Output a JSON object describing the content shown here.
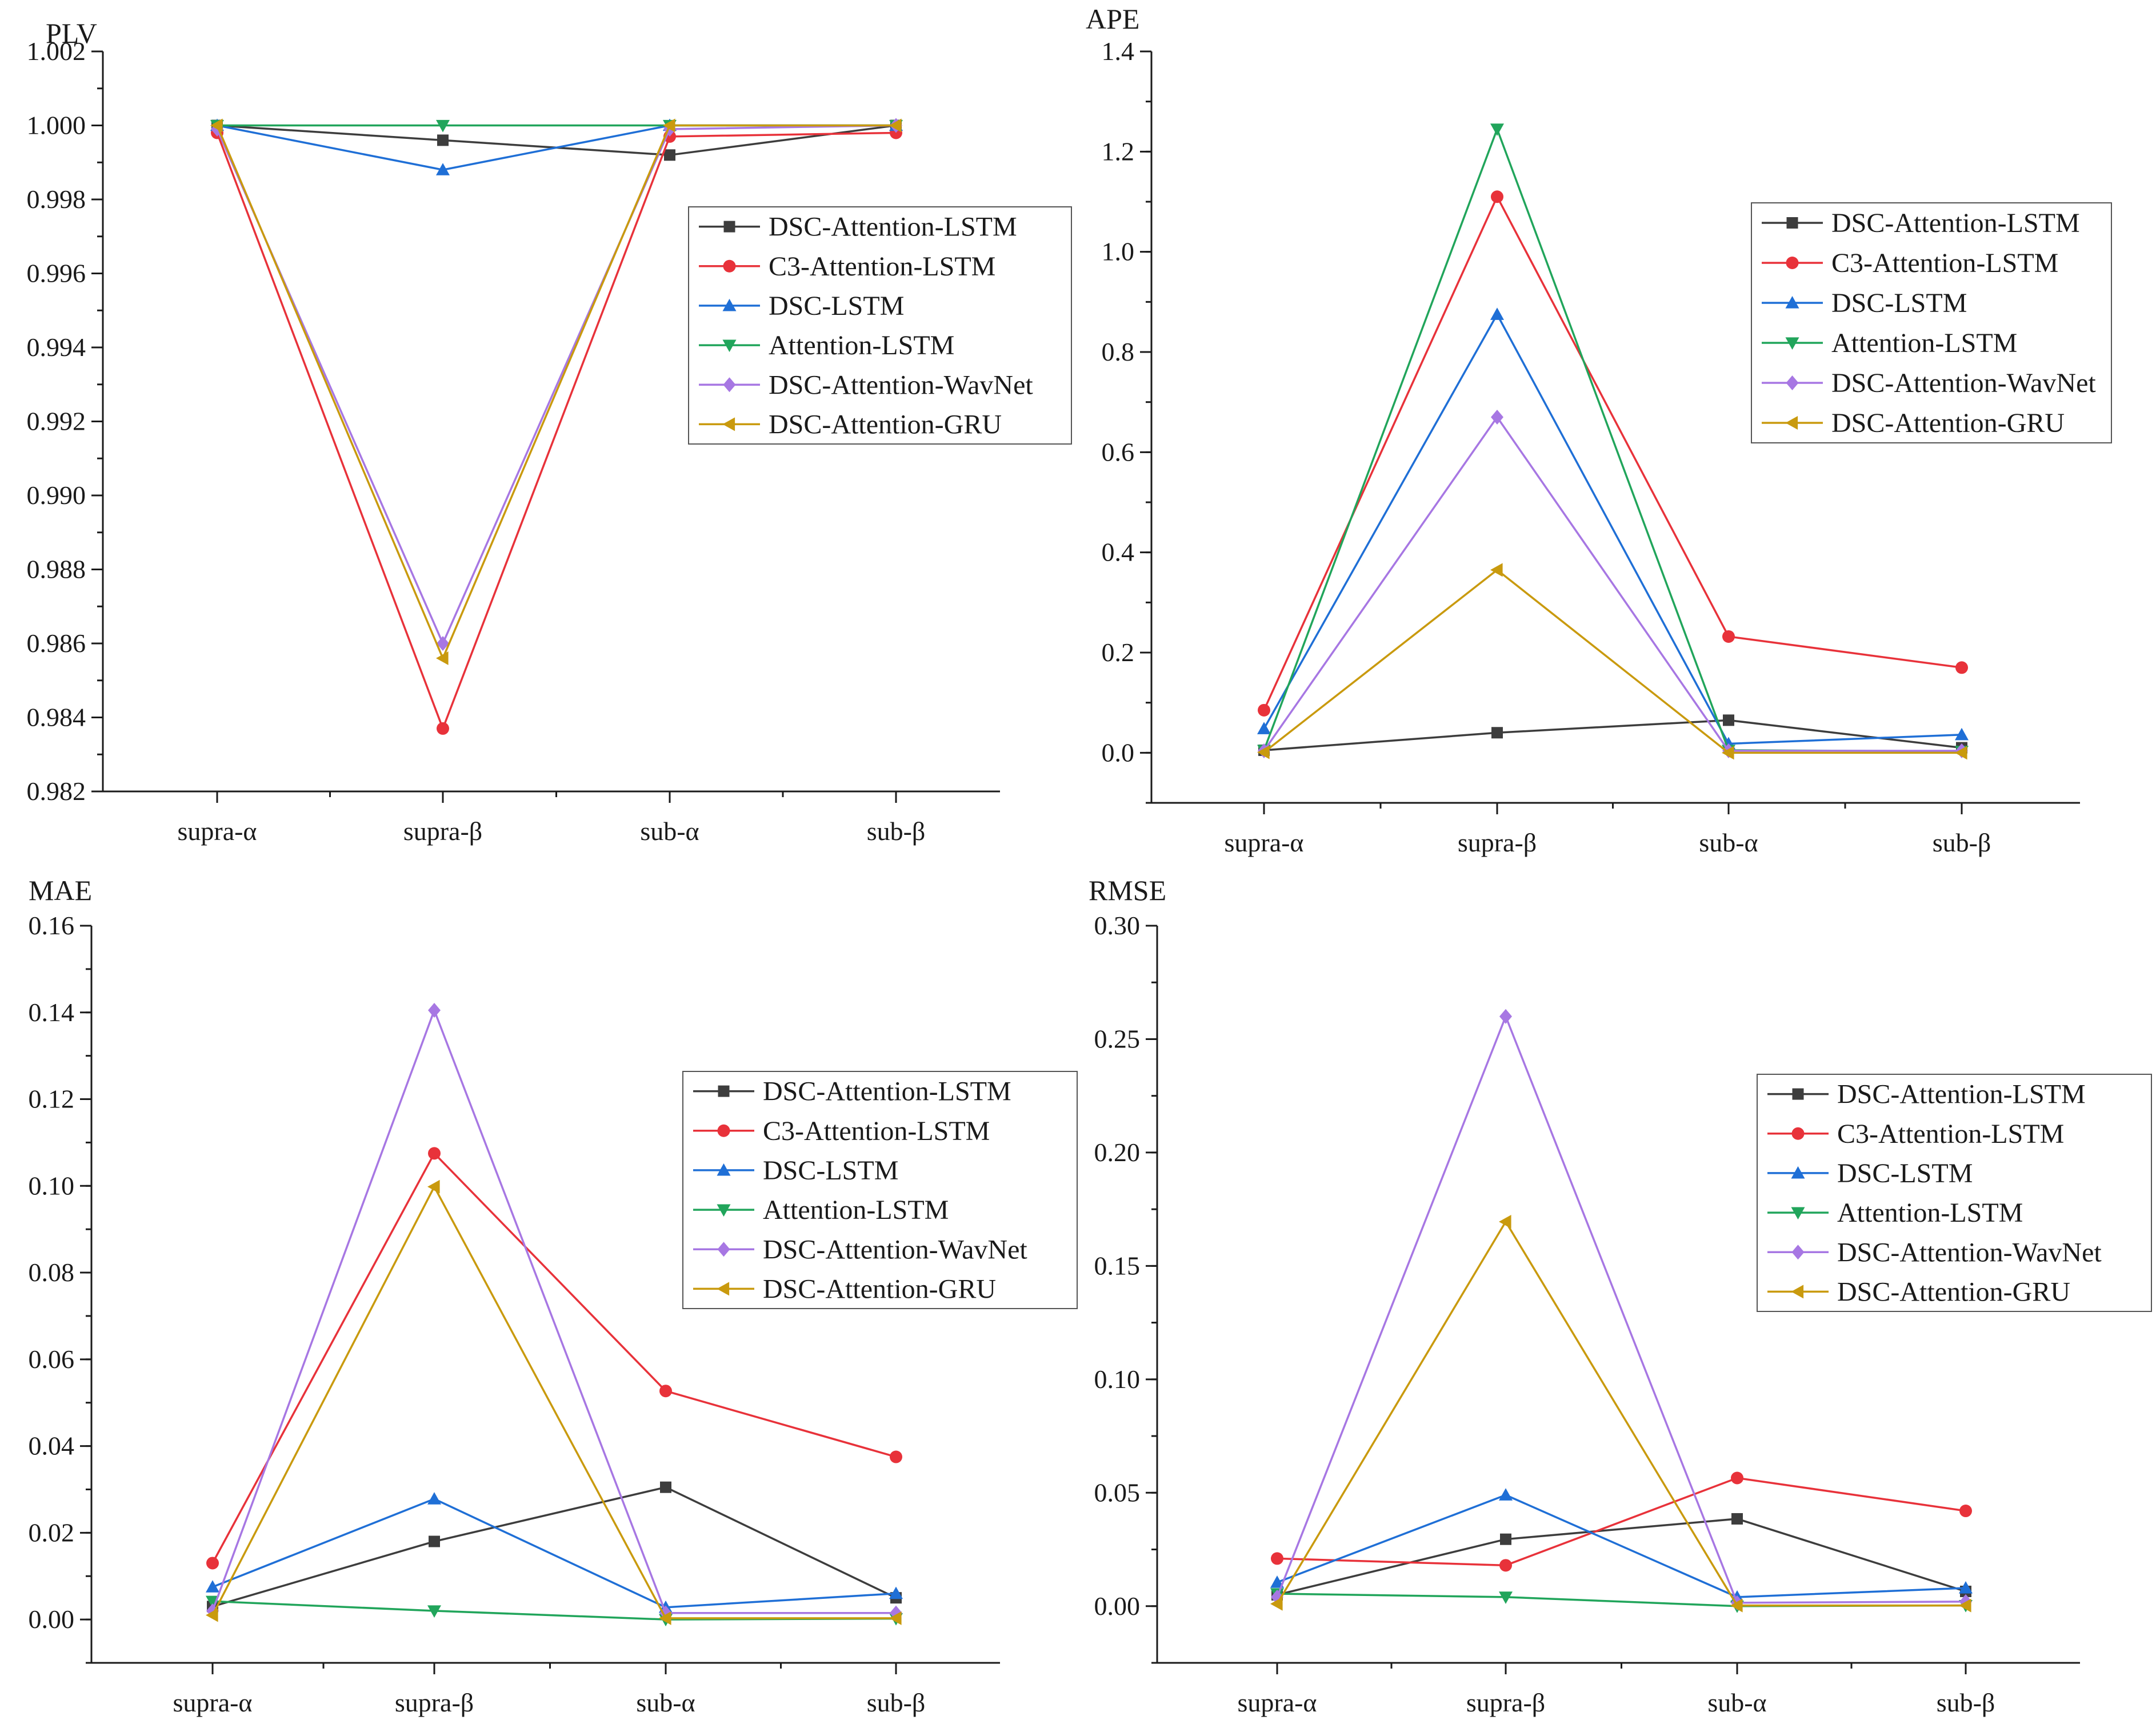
{
  "chart_data": [
    {
      "type": "line",
      "title": "PLV",
      "categories": [
        "supra-α",
        "supra-β",
        "sub-α",
        "sub-β"
      ],
      "ylim": [
        0.982,
        1.002
      ],
      "yticks": [
        "0.982",
        "0.984",
        "0.986",
        "0.988",
        "0.990",
        "0.992",
        "0.994",
        "0.996",
        "0.998",
        "1.000",
        "1.002"
      ],
      "yminor": 0.001,
      "legend_position": "right-middle",
      "series": [
        {
          "name": "DSC-Attention-LSTM",
          "values": [
            1.0,
            0.9996,
            0.9992,
            1.0
          ]
        },
        {
          "name": "C3-Attention-LSTM",
          "values": [
            0.9998,
            0.9837,
            0.9997,
            0.9998
          ]
        },
        {
          "name": "DSC-LSTM",
          "values": [
            1.0,
            0.9988,
            1.0,
            1.0
          ]
        },
        {
          "name": "Attention-LSTM",
          "values": [
            1.0,
            1.0,
            1.0,
            1.0
          ]
        },
        {
          "name": "DSC-Attention-WavNet",
          "values": [
            0.9999,
            0.986,
            0.9999,
            1.0
          ]
        },
        {
          "name": "DSC-Attention-GRU",
          "values": [
            1.0,
            0.9856,
            1.0,
            1.0
          ]
        }
      ]
    },
    {
      "type": "line",
      "title": "APE",
      "categories": [
        "supra-α",
        "supra-β",
        "sub-α",
        "sub-β"
      ],
      "ylim": [
        -0.1,
        1.4
      ],
      "yticks": [
        "0.0",
        "0.2",
        "0.4",
        "0.6",
        "0.8",
        "1.0",
        "1.2",
        "1.4"
      ],
      "yminor": 0.1,
      "legend_position": "right-top",
      "series": [
        {
          "name": "DSC-Attention-LSTM",
          "values": [
            0.005,
            0.04,
            0.065,
            0.01
          ]
        },
        {
          "name": "C3-Attention-LSTM",
          "values": [
            0.085,
            1.11,
            0.232,
            0.17
          ]
        },
        {
          "name": "DSC-LSTM",
          "values": [
            0.048,
            0.875,
            0.018,
            0.036
          ]
        },
        {
          "name": "Attention-LSTM",
          "values": [
            0.005,
            1.245,
            0.005,
            0.003
          ]
        },
        {
          "name": "DSC-Attention-WavNet",
          "values": [
            0.004,
            0.67,
            0.004,
            0.004
          ]
        },
        {
          "name": "DSC-Attention-GRU",
          "values": [
            0.001,
            0.365,
            0.0,
            0.0
          ]
        }
      ]
    },
    {
      "type": "line",
      "title": "MAE",
      "categories": [
        "supra-α",
        "supra-β",
        "sub-α",
        "sub-β"
      ],
      "ylim": [
        -0.01,
        0.16
      ],
      "yticks": [
        "0.00",
        "0.02",
        "0.04",
        "0.06",
        "0.08",
        "0.10",
        "0.12",
        "0.14",
        "0.16"
      ],
      "yminor": 0.01,
      "legend_position": "right-middle",
      "series": [
        {
          "name": "DSC-Attention-LSTM",
          "values": [
            0.003,
            0.018,
            0.0305,
            0.005
          ]
        },
        {
          "name": "C3-Attention-LSTM",
          "values": [
            0.013,
            0.1075,
            0.0527,
            0.0375
          ]
        },
        {
          "name": "DSC-LSTM",
          "values": [
            0.0075,
            0.0278,
            0.0028,
            0.006
          ]
        },
        {
          "name": "Attention-LSTM",
          "values": [
            0.0042,
            0.002,
            0.0,
            0.0002
          ]
        },
        {
          "name": "DSC-Attention-WavNet",
          "values": [
            0.002,
            0.1405,
            0.0015,
            0.0015
          ]
        },
        {
          "name": "DSC-Attention-GRU",
          "values": [
            0.001,
            0.0998,
            0.0003,
            0.0003
          ]
        }
      ]
    },
    {
      "type": "line",
      "title": "RMSE",
      "categories": [
        "supra-α",
        "supra-β",
        "sub-α",
        "sub-β"
      ],
      "ylim": [
        -0.025,
        0.3
      ],
      "yticks": [
        "0.00",
        "0.05",
        "0.10",
        "0.15",
        "0.20",
        "0.25",
        "0.30"
      ],
      "yminor": 0.025,
      "legend_position": "right-middle",
      "series": [
        {
          "name": "DSC-Attention-LSTM",
          "values": [
            0.005,
            0.0295,
            0.0385,
            0.0065
          ]
        },
        {
          "name": "C3-Attention-LSTM",
          "values": [
            0.021,
            0.018,
            0.0565,
            0.042
          ]
        },
        {
          "name": "DSC-LSTM",
          "values": [
            0.0105,
            0.049,
            0.004,
            0.008
          ]
        },
        {
          "name": "Attention-LSTM",
          "values": [
            0.0055,
            0.004,
            0.0,
            0.0003
          ]
        },
        {
          "name": "DSC-Attention-WavNet",
          "values": [
            0.004,
            0.26,
            0.0015,
            0.002
          ]
        },
        {
          "name": "DSC-Attention-GRU",
          "values": [
            0.001,
            0.1695,
            0.0003,
            0.0003
          ]
        }
      ]
    }
  ],
  "series_styles": [
    {
      "name": "DSC-Attention-LSTM",
      "color": "#3d3d3d",
      "marker": "square"
    },
    {
      "name": "C3-Attention-LSTM",
      "color": "#e8323a",
      "marker": "circle"
    },
    {
      "name": "DSC-LSTM",
      "color": "#1f6fd6",
      "marker": "triangle-up"
    },
    {
      "name": "Attention-LSTM",
      "color": "#21a55b",
      "marker": "triangle-down"
    },
    {
      "name": "DSC-Attention-WavNet",
      "color": "#a777e3",
      "marker": "diamond"
    },
    {
      "name": "DSC-Attention-GRU",
      "color": "#c99a0e",
      "marker": "triangle-left"
    }
  ]
}
